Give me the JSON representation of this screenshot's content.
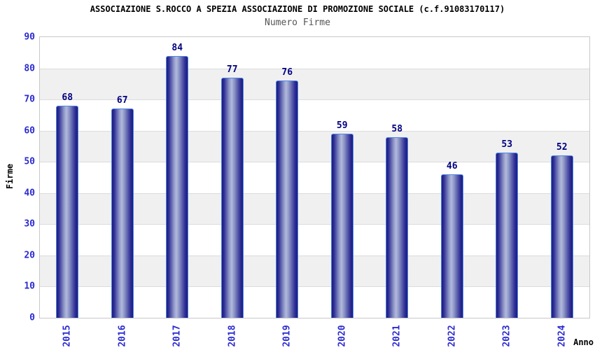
{
  "colors": {
    "tick_blue": "#2b2bd0",
    "value_navy": "#000080",
    "bar_edge": "#1c1c7c",
    "bar_center": "#b2b9dc",
    "bar_border": "#4e86e6",
    "band_gray": "#f0f0f0",
    "grid_line": "#dcdcdc",
    "plot_border": "#c8c8c8",
    "title_black": "#000000",
    "subtitle_gray": "#555555"
  },
  "chart_data": {
    "type": "bar",
    "title": "ASSOCIAZIONE S.ROCCO A SPEZIA ASSOCIAZIONE DI PROMOZIONE SOCIALE (c.f.91083170117)",
    "subtitle": "Numero Firme",
    "xlabel": "Anno",
    "ylabel": "Firme",
    "categories": [
      "2015",
      "2016",
      "2017",
      "2018",
      "2019",
      "2020",
      "2021",
      "2022",
      "2023",
      "2024"
    ],
    "values": [
      68,
      67,
      84,
      77,
      76,
      59,
      58,
      46,
      53,
      52
    ],
    "ylim": [
      0,
      90
    ],
    "y_ticks": [
      0,
      10,
      20,
      30,
      40,
      50,
      60,
      70,
      80,
      90
    ],
    "x_tick_rotation": -90,
    "grid": true,
    "legend": "none",
    "band_pattern": "alternating white and light-gray bands every 10 units, white at 0-10"
  }
}
